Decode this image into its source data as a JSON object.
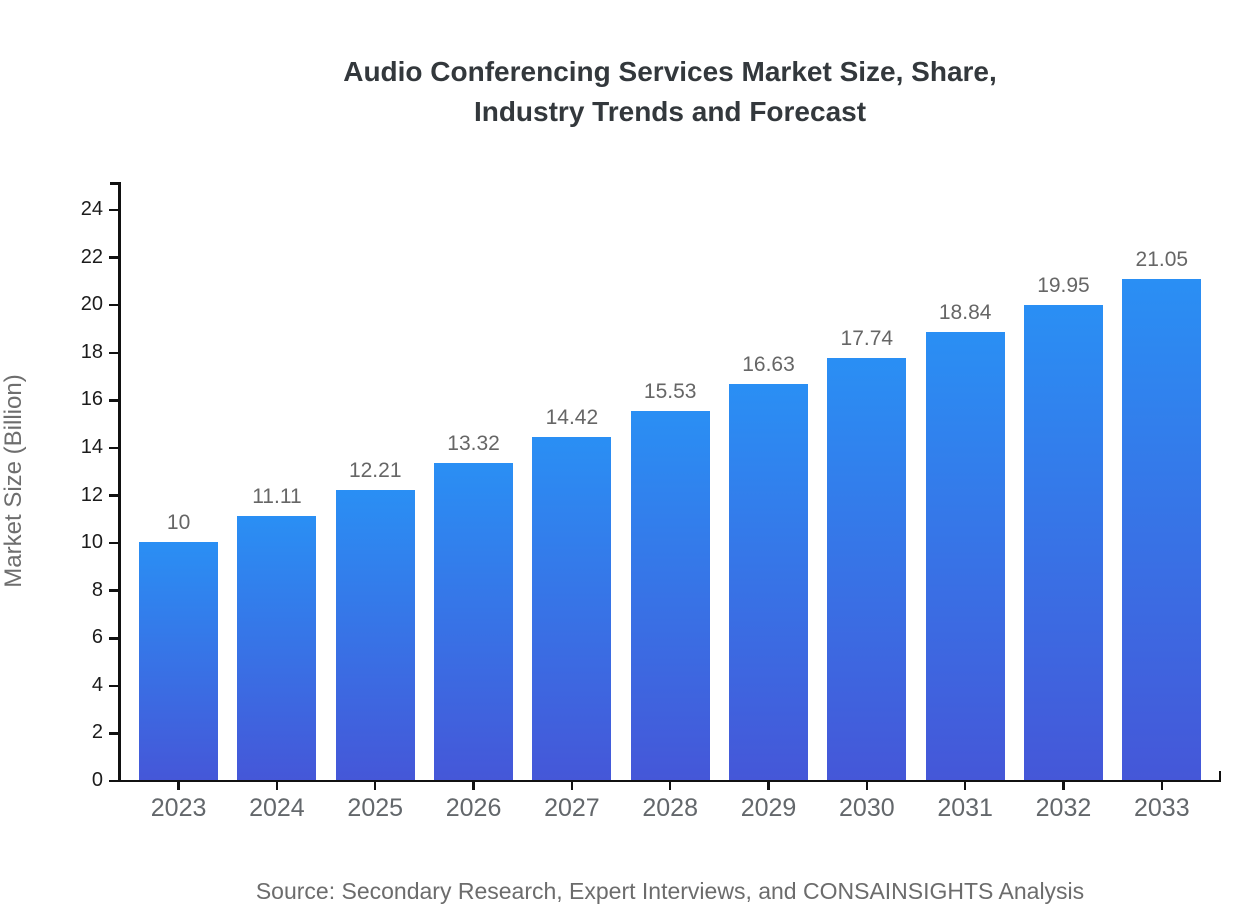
{
  "title": {
    "line1": "Audio Conferencing Services Market Size, Share,",
    "line2": "Industry Trends and Forecast"
  },
  "source": "Source: Secondary Research, Expert Interviews, and CONSAINSIGHTS Analysis",
  "chart_data": {
    "type": "bar",
    "title": "Audio Conferencing Services Market Size, Share, Industry Trends and Forecast",
    "categories": [
      "2023",
      "2024",
      "2025",
      "2026",
      "2027",
      "2028",
      "2029",
      "2030",
      "2031",
      "2032",
      "2033"
    ],
    "values": [
      10,
      11.11,
      12.21,
      13.32,
      14.42,
      15.53,
      16.63,
      17.74,
      18.84,
      19.95,
      21.05
    ],
    "value_labels": [
      "10",
      "11.11",
      "12.21",
      "13.32",
      "14.42",
      "15.53",
      "16.63",
      "17.74",
      "18.84",
      "19.95",
      "21.05"
    ],
    "xlabel": "",
    "ylabel": "Market Size (Billion)",
    "ylim": [
      0,
      24
    ],
    "yticks": [
      0,
      2,
      4,
      6,
      8,
      10,
      12,
      14,
      16,
      18,
      20,
      22,
      24
    ],
    "grid": false,
    "legend": null,
    "style": {
      "bar_gradient_top": "#2a8ff4",
      "bar_gradient_bottom": "#4557d8",
      "axis_color": "#111111",
      "value_label_color": "#666666",
      "tick_label_color": "#1c1c1c",
      "category_label_color": "#63676b"
    }
  }
}
